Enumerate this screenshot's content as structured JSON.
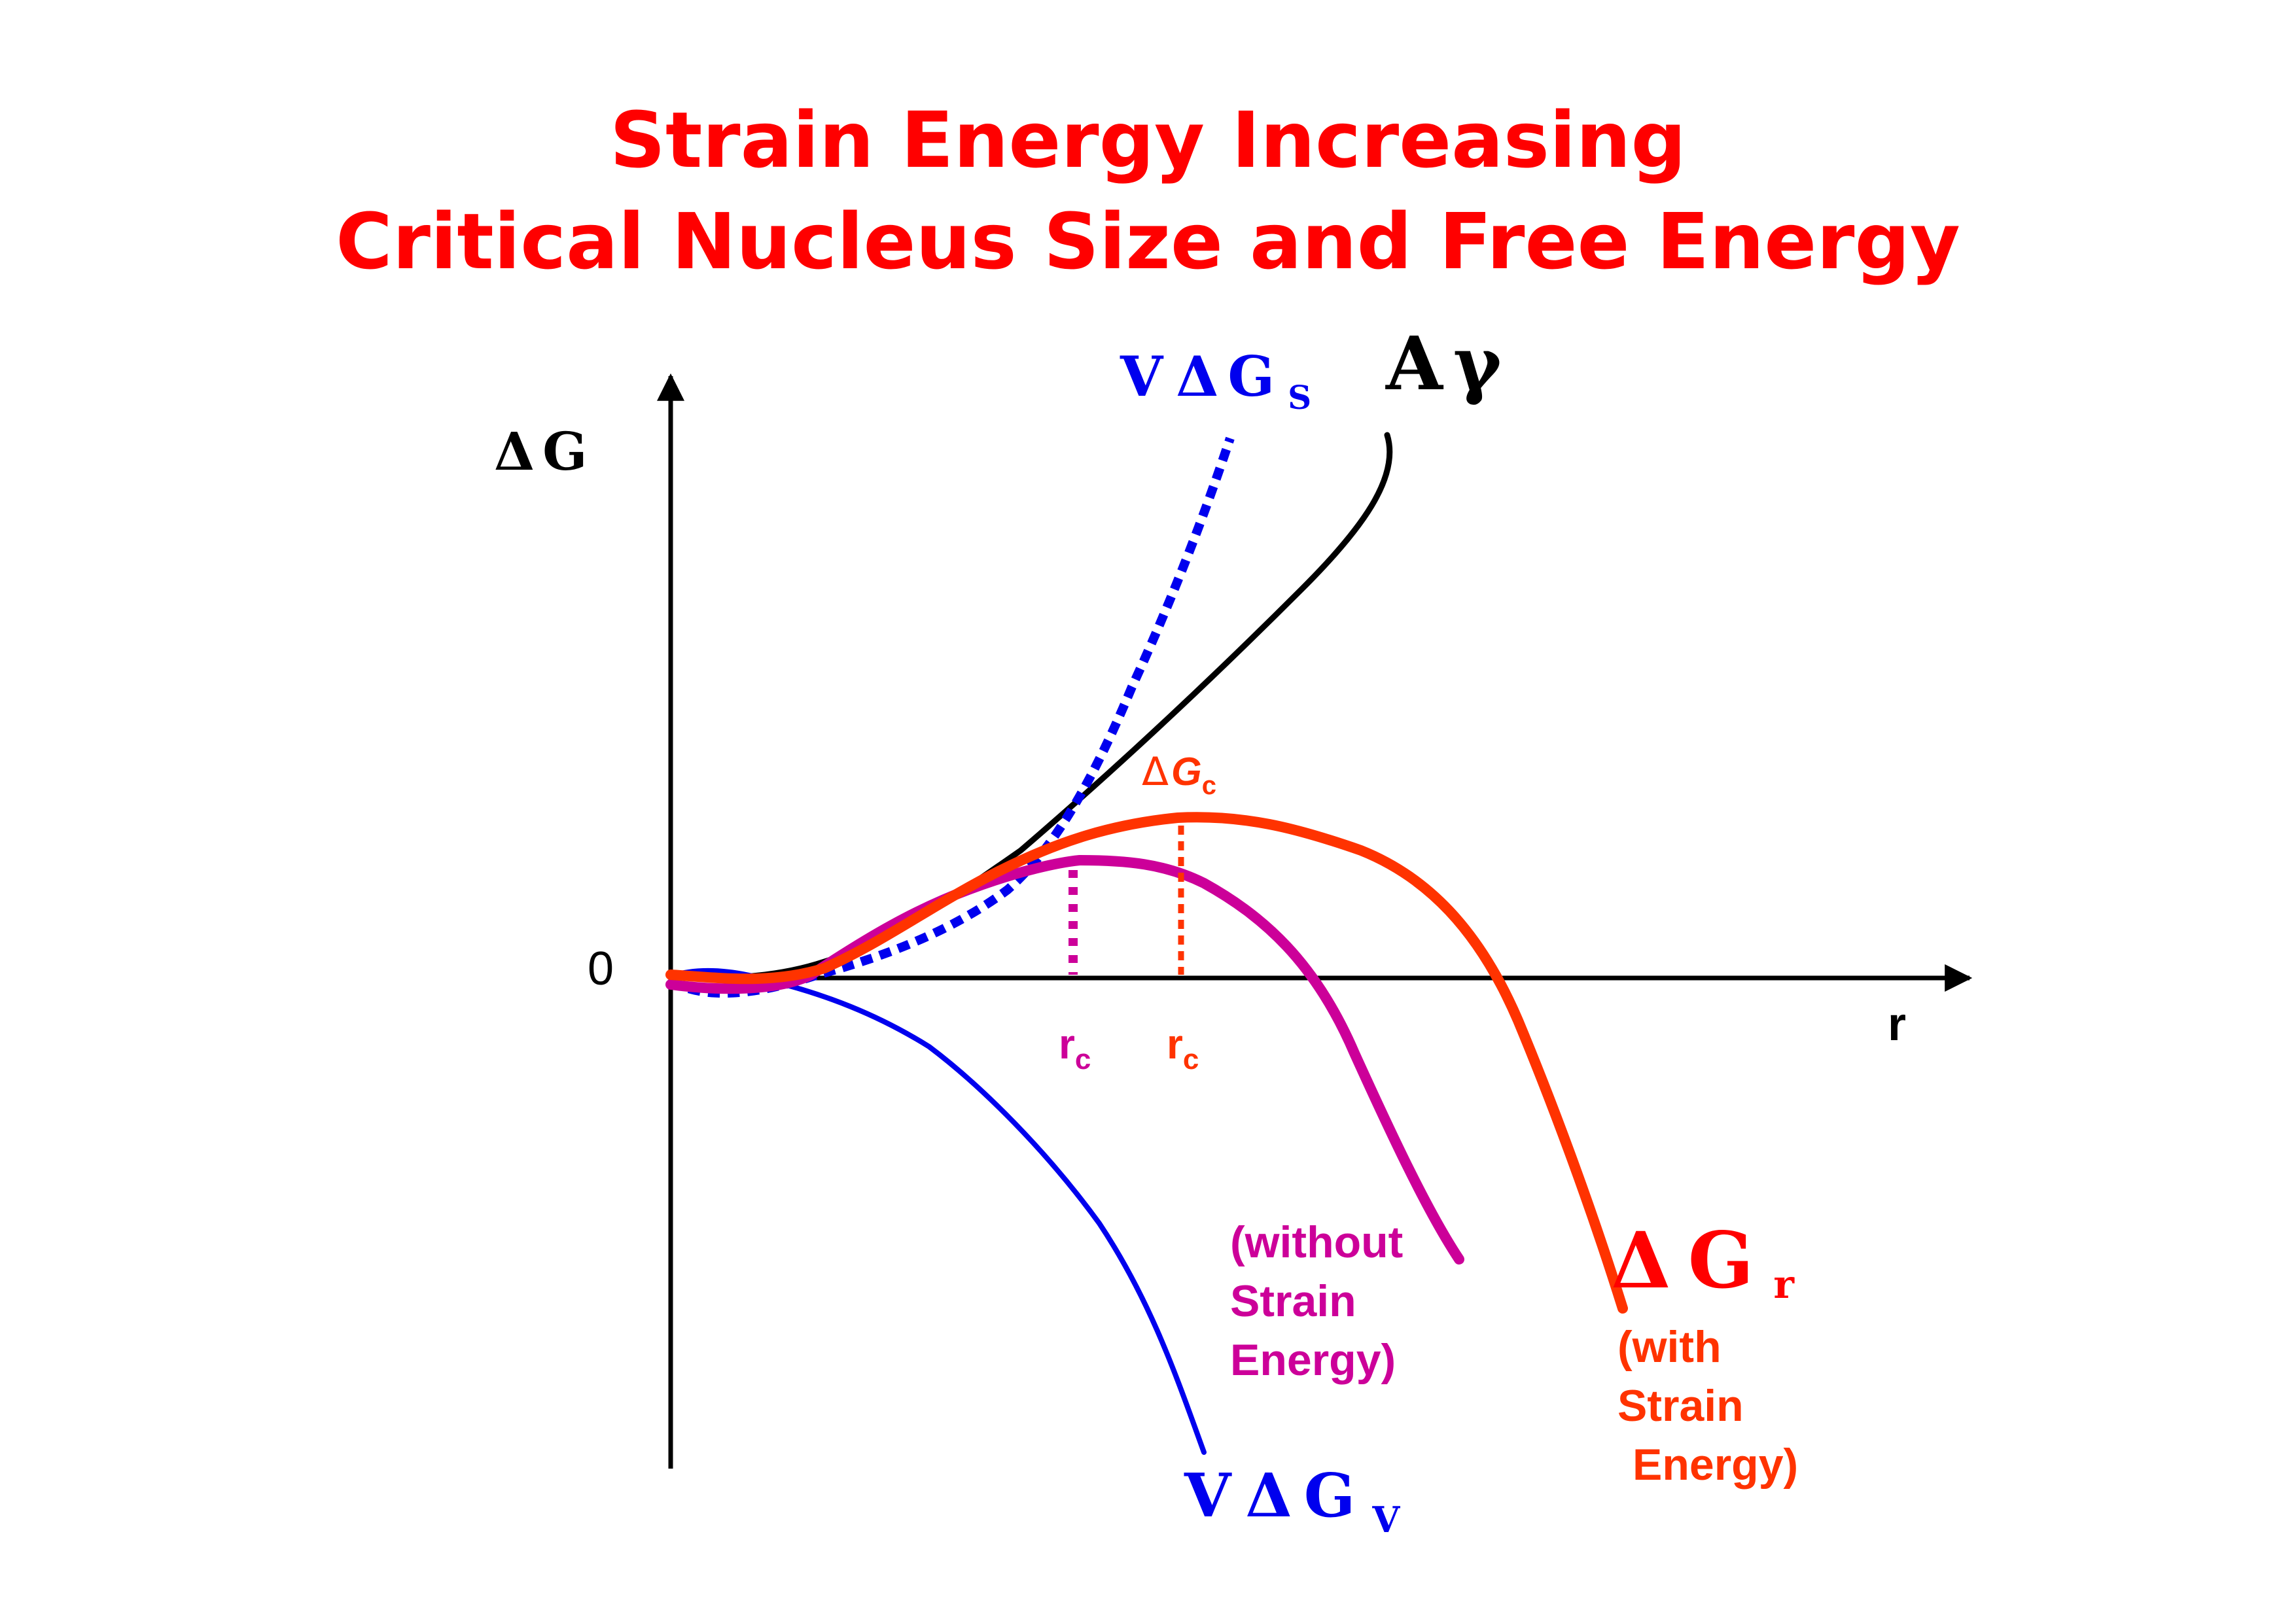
{
  "title": {
    "line1": "Strain Energy Increasing",
    "line2": "Critical Nucleus Size and Free Energy"
  },
  "axes": {
    "y_label_delta": "Δ",
    "y_label_g": "G",
    "x_label": "r",
    "origin_label": "0"
  },
  "curves": {
    "surface": {
      "name": "A",
      "symbol": "γ",
      "color": "#000000"
    },
    "strain": {
      "name": "V",
      "delta": "Δ",
      "g": "G",
      "sub": "S",
      "color": "#0000ff"
    },
    "volume": {
      "name": "V",
      "delta": "Δ",
      "g": "G",
      "sub": "V",
      "color": "#0000ff"
    },
    "without_strain": {
      "line1": "(without",
      "line2": "Strain",
      "line3": "Energy)",
      "color": "#cc0099"
    },
    "with_strain": {
      "delta": "Δ",
      "g": "G",
      "sub": "r",
      "line1": "(with",
      "line2": "Strain",
      "line3": "Energy)",
      "color": "#ff3300"
    }
  },
  "markers": {
    "critical_energy": {
      "delta": "Δ",
      "g": "G",
      "sub": "c",
      "color": "#ff3300"
    },
    "rc_without": {
      "r": "r",
      "sub": "c",
      "color": "#cc0099"
    },
    "rc_with": {
      "r": "r",
      "sub": "c",
      "color": "#ff3300"
    }
  }
}
